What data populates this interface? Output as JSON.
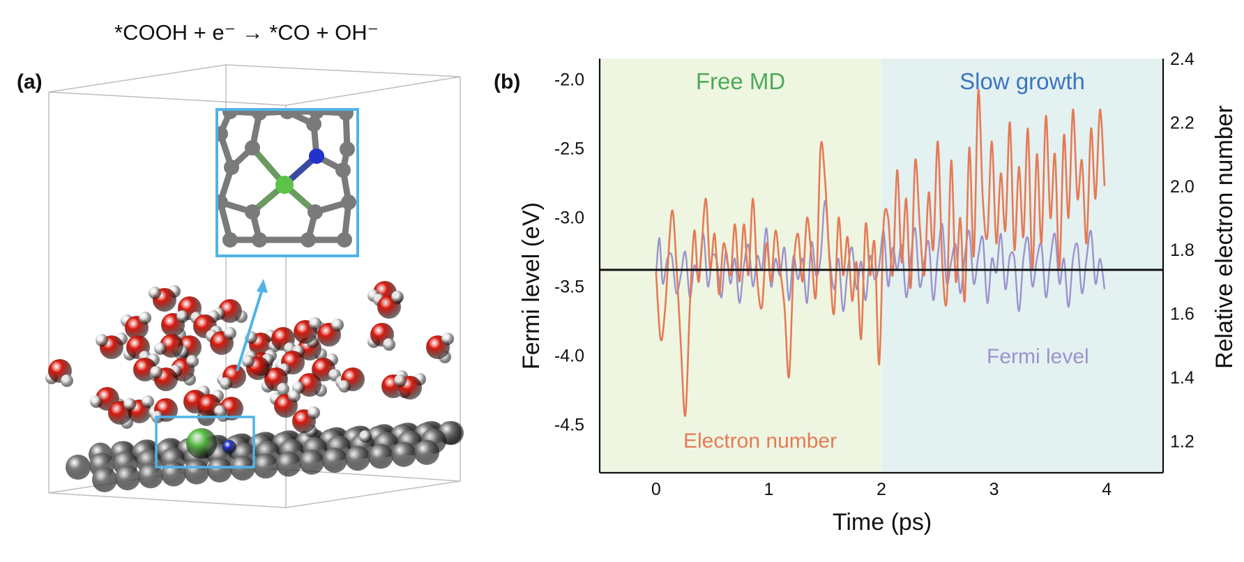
{
  "panel_a": {
    "label": "(a)",
    "equation": "*COOH + e⁻ → *CO + OH⁻",
    "colors": {
      "box": "#bbbbbb",
      "highlight": "#4fb3e8",
      "oxygen": "#d8180c",
      "hydrogen": "#f4f4f4",
      "carbon": "#7a7a7a",
      "nickel": "#5cc24a",
      "nitrogen": "#2233cc"
    }
  },
  "panel_b": {
    "label": "(b)"
  },
  "chart_data": {
    "type": "line",
    "xlabel": "Time (ps)",
    "ylabel": "Fermi level (eV)",
    "y2label": "Relative electron number",
    "xlim": [
      -0.5,
      4.5
    ],
    "ylim": [
      -4.85,
      -1.85
    ],
    "y2lim": [
      1.1,
      2.4
    ],
    "xticks": [
      "0",
      "1",
      "2",
      "3",
      "4"
    ],
    "yticks": [
      "-2.0",
      "-2.5",
      "-3.0",
      "-3.5",
      "-4.0",
      "-4.5"
    ],
    "y2ticks": [
      "2.4",
      "2.2",
      "2.0",
      "1.8",
      "1.6",
      "1.4",
      "1.2"
    ],
    "reference_line_y": -3.38,
    "regions": [
      {
        "label": "Free MD",
        "x_range": [
          -0.5,
          2.0
        ],
        "color": "#eef6e2",
        "label_color": "#4daa57"
      },
      {
        "label": "Slow growth",
        "x_range": [
          2.0,
          4.5
        ],
        "color": "#e4f1f1",
        "label_color": "#3b74c0"
      }
    ],
    "series": [
      {
        "name": "Electron number",
        "axis": "right",
        "color": "#e57a55",
        "x": [
          0,
          0.04,
          0.08,
          0.14,
          0.18,
          0.22,
          0.26,
          0.3,
          0.34,
          0.38,
          0.44,
          0.48,
          0.52,
          0.56,
          0.6,
          0.66,
          0.7,
          0.74,
          0.78,
          0.82,
          0.86,
          0.9,
          0.94,
          0.98,
          1.02,
          1.06,
          1.1,
          1.14,
          1.18,
          1.22,
          1.26,
          1.3,
          1.34,
          1.38,
          1.42,
          1.46,
          1.5,
          1.54,
          1.58,
          1.62,
          1.66,
          1.7,
          1.74,
          1.78,
          1.82,
          1.86,
          1.9,
          1.94,
          1.98,
          2.02,
          2.06,
          2.1,
          2.14,
          2.18,
          2.22,
          2.26,
          2.3,
          2.34,
          2.38,
          2.42,
          2.46,
          2.5,
          2.54,
          2.58,
          2.62,
          2.66,
          2.7,
          2.74,
          2.78,
          2.82,
          2.86,
          2.9,
          2.94,
          2.98,
          3.02,
          3.06,
          3.1,
          3.14,
          3.18,
          3.22,
          3.26,
          3.3,
          3.34,
          3.38,
          3.42,
          3.46,
          3.5,
          3.54,
          3.58,
          3.62,
          3.66,
          3.7,
          3.74,
          3.78,
          3.82,
          3.86,
          3.9,
          3.94,
          3.98
        ],
        "y": [
          1.73,
          1.52,
          1.61,
          1.92,
          1.76,
          1.5,
          1.28,
          1.62,
          1.86,
          1.7,
          1.96,
          1.74,
          1.85,
          1.66,
          1.82,
          1.72,
          1.88,
          1.7,
          1.88,
          1.72,
          1.96,
          1.7,
          1.62,
          1.82,
          1.7,
          1.86,
          1.74,
          1.62,
          1.4,
          1.74,
          1.85,
          1.7,
          1.9,
          1.78,
          1.66,
          2.12,
          2.02,
          1.76,
          1.6,
          1.9,
          1.72,
          1.84,
          1.64,
          1.76,
          1.52,
          1.88,
          1.72,
          1.82,
          1.44,
          1.88,
          1.9,
          1.72,
          2.05,
          1.76,
          1.96,
          1.68,
          2.08,
          1.88,
          1.72,
          1.98,
          1.8,
          2.14,
          1.76,
          1.64,
          2.08,
          1.7,
          1.9,
          1.64,
          2.12,
          1.78,
          2.3,
          1.96,
          1.84,
          2.14,
          1.82,
          2.04,
          1.86,
          2.2,
          1.8,
          2.06,
          1.84,
          2.18,
          1.74,
          2.1,
          1.82,
          2.22,
          1.9,
          2.1,
          1.74,
          2.16,
          1.9,
          2.24,
          1.96,
          2.08,
          1.82,
          2.18,
          1.96,
          2.24,
          2.0
        ]
      },
      {
        "name": "Fermi level",
        "axis": "left",
        "color": "#9b93cc",
        "x": [
          0,
          0.03,
          0.06,
          0.1,
          0.14,
          0.18,
          0.22,
          0.26,
          0.3,
          0.34,
          0.38,
          0.42,
          0.46,
          0.5,
          0.54,
          0.58,
          0.62,
          0.66,
          0.7,
          0.74,
          0.78,
          0.82,
          0.86,
          0.9,
          0.94,
          0.98,
          1.02,
          1.06,
          1.1,
          1.14,
          1.18,
          1.22,
          1.26,
          1.3,
          1.34,
          1.38,
          1.42,
          1.46,
          1.5,
          1.54,
          1.58,
          1.62,
          1.66,
          1.7,
          1.74,
          1.78,
          1.82,
          1.86,
          1.9,
          1.94,
          1.98,
          2.02,
          2.06,
          2.1,
          2.14,
          2.18,
          2.22,
          2.26,
          2.3,
          2.34,
          2.38,
          2.42,
          2.46,
          2.5,
          2.54,
          2.58,
          2.62,
          2.66,
          2.7,
          2.74,
          2.78,
          2.82,
          2.86,
          2.9,
          2.94,
          2.98,
          3.02,
          3.06,
          3.1,
          3.14,
          3.18,
          3.22,
          3.26,
          3.3,
          3.34,
          3.38,
          3.42,
          3.46,
          3.5,
          3.54,
          3.58,
          3.62,
          3.66,
          3.7,
          3.74,
          3.78,
          3.82,
          3.86,
          3.9,
          3.94,
          3.98
        ],
        "y": [
          -3.42,
          -3.15,
          -3.48,
          -3.3,
          -3.28,
          -3.55,
          -3.42,
          -3.25,
          -3.58,
          -3.35,
          -3.42,
          -3.12,
          -3.5,
          -3.28,
          -3.32,
          -3.58,
          -3.25,
          -3.48,
          -3.3,
          -3.62,
          -3.35,
          -3.2,
          -3.5,
          -3.28,
          -3.38,
          -3.08,
          -3.5,
          -3.3,
          -3.42,
          -3.22,
          -3.6,
          -3.28,
          -3.45,
          -3.3,
          -3.62,
          -3.18,
          -3.42,
          -3.3,
          -2.88,
          -3.28,
          -3.52,
          -3.3,
          -3.68,
          -3.38,
          -3.22,
          -3.52,
          -3.32,
          -3.6,
          -3.28,
          -3.45,
          -3.35,
          -3.1,
          -3.5,
          -3.22,
          -3.38,
          -3.2,
          -3.58,
          -3.3,
          -3.08,
          -3.5,
          -3.32,
          -3.18,
          -3.6,
          -3.28,
          -3.05,
          -3.48,
          -3.32,
          -3.2,
          -3.55,
          -3.28,
          -3.1,
          -3.48,
          -3.28,
          -3.15,
          -3.62,
          -3.3,
          -3.4,
          -3.12,
          -3.52,
          -3.28,
          -3.3,
          -3.68,
          -3.3,
          -3.15,
          -3.5,
          -3.3,
          -3.2,
          -3.58,
          -3.3,
          -3.12,
          -3.48,
          -3.3,
          -3.65,
          -3.3,
          -3.2,
          -3.55,
          -3.3,
          -3.1,
          -3.48,
          -3.3,
          -3.52
        ]
      }
    ]
  }
}
